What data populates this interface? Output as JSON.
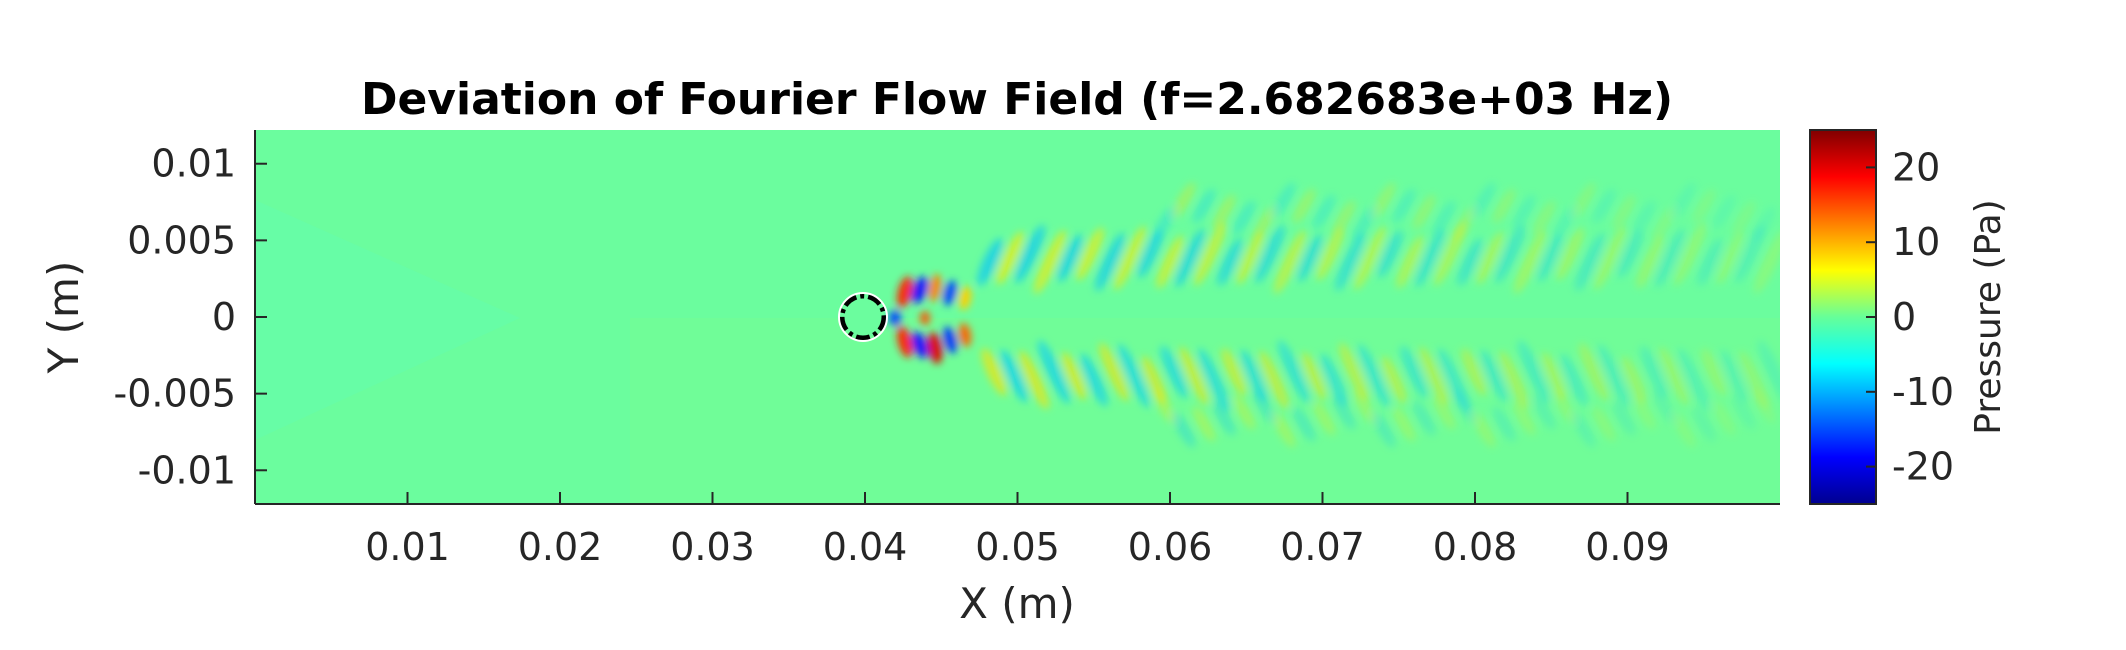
{
  "chart_data": {
    "type": "heatmap",
    "title": "Deviation of Fourier Flow Field (f=2.682683e+03 Hz)",
    "xlabel": "X (m)",
    "ylabel": "Y (m)",
    "xlim": [
      0,
      0.1
    ],
    "ylim": [
      -0.0122,
      0.0122
    ],
    "xticks": [
      0.01,
      0.02,
      0.03,
      0.04,
      0.05,
      0.06,
      0.07,
      0.08,
      0.09
    ],
    "xtick_labels": [
      "0.01",
      "0.02",
      "0.03",
      "0.04",
      "0.05",
      "0.06",
      "0.07",
      "0.08",
      "0.09"
    ],
    "yticks": [
      0.01,
      0.005,
      0,
      -0.005,
      -0.01
    ],
    "ytick_labels": [
      "0.01",
      "0.005",
      "0",
      "-0.005",
      "-0.01"
    ],
    "colorbar": {
      "label": "Pressure (Pa)",
      "clim": [
        -25,
        25
      ],
      "colormap": "jet",
      "ticks": [
        20,
        10,
        0,
        -10,
        -20
      ],
      "tick_labels": [
        "20",
        "10",
        "0",
        "-10",
        "-20"
      ]
    },
    "cylinder": {
      "center": [
        0.0398,
        0
      ],
      "diameter": 0.0028
    },
    "background_color": "#6bfd9e",
    "grid": false
  }
}
